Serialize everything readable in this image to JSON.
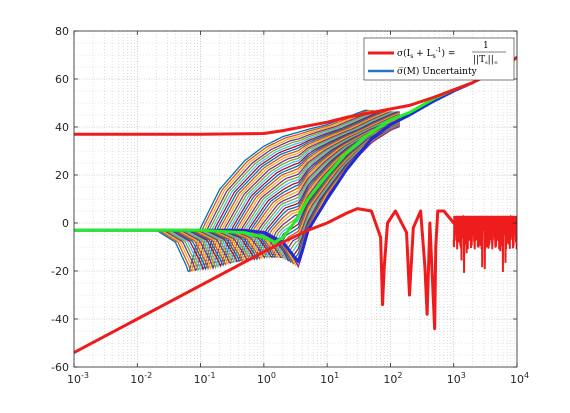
{
  "chart_data": {
    "type": "line",
    "x_scale": "log",
    "xlim": [
      0.001,
      10000
    ],
    "ylim": [
      -60,
      80
    ],
    "grid": true,
    "legend_placement": "top-right",
    "x_ticks": [
      0.001,
      0.01,
      0.1,
      1,
      10,
      100,
      1000,
      10000
    ],
    "x_tick_labels": [
      {
        "base": "10",
        "exp": "-3"
      },
      {
        "base": "10",
        "exp": "-2"
      },
      {
        "base": "10",
        "exp": "-1"
      },
      {
        "base": "10",
        "exp": "0"
      },
      {
        "base": "10",
        "exp": "1"
      },
      {
        "base": "10",
        "exp": "2"
      },
      {
        "base": "10",
        "exp": "3"
      },
      {
        "base": "10",
        "exp": "4"
      }
    ],
    "y_ticks": [
      -60,
      -40,
      -20,
      0,
      20,
      40,
      60,
      80
    ],
    "y_tick_labels": [
      "-60",
      "-40",
      "-20",
      "0",
      "20",
      "40",
      "60",
      "80"
    ],
    "legend": [
      {
        "lhs": "σ(I",
        "sub1": "s",
        "mid": " + L",
        "sub2": "s",
        "sup2": "-1",
        "eq": ") = ",
        "num": "1",
        "den": "||T",
        "den_sub": "s",
        "den_end": "||",
        "den_sub2": "∞",
        "color": "#ff2020"
      },
      {
        "label": "σ̅(M) Uncertainty",
        "color": "#2a75c2"
      }
    ],
    "series": [
      {
        "role": "red-upper",
        "color": "#ee1c1c",
        "x": [
          0.001,
          0.1,
          1,
          2,
          5,
          10,
          20,
          50,
          100,
          200,
          500,
          1000,
          2000,
          5000,
          10000
        ],
        "y": [
          37,
          37,
          37.3,
          38.5,
          40.5,
          42,
          44,
          46,
          47.5,
          49,
          52.5,
          55.5,
          58.5,
          64,
          69
        ]
      },
      {
        "role": "red-lower",
        "color": "#ee1c1c",
        "x": [
          0.001,
          0.01,
          0.1,
          1,
          2,
          5,
          10,
          20,
          30,
          50,
          70,
          75,
          80,
          90,
          120,
          180,
          200,
          230,
          300,
          350,
          380,
          420,
          500,
          520,
          560,
          700,
          1000,
          2000,
          5000,
          10000
        ],
        "y": [
          -54,
          -40,
          -26,
          -12,
          -8,
          -3,
          0,
          4,
          6,
          5,
          -6,
          -34,
          -18,
          0,
          5,
          -4,
          -30,
          -2,
          5,
          -18,
          -38,
          0,
          -44,
          -10,
          5,
          5,
          0,
          2,
          0,
          2
        ]
      },
      {
        "role": "green-nominal",
        "color": "#22ee22",
        "x": [
          0.001,
          0.1,
          0.5,
          1,
          1.5,
          2,
          3,
          5,
          10,
          20,
          40,
          100,
          200,
          500,
          1000,
          2000,
          5000,
          10000
        ],
        "y": [
          -3,
          -3,
          -4,
          -6,
          -8,
          -6,
          0,
          10,
          20,
          29,
          36,
          43,
          46,
          52,
          55.5,
          58.5,
          64,
          69
        ]
      },
      {
        "role": "blue-bound",
        "color": "#1f2bd6",
        "x": [
          0.001,
          0.5,
          1,
          2,
          3,
          3.5,
          4,
          5,
          10,
          20,
          50,
          100,
          200,
          500,
          1000,
          2000,
          5000,
          10000
        ],
        "y": [
          -3,
          -3,
          -4,
          -8,
          -14,
          -16,
          -12,
          -3,
          10,
          22,
          35,
          41,
          45,
          51,
          55,
          58.5,
          64,
          69
        ]
      },
      {
        "role": "uncertainty-family-outer",
        "color": "#1f77b4",
        "x": [
          0.001,
          0.02,
          0.04,
          0.06,
          0.065,
          0.08,
          0.1,
          0.2,
          0.5,
          1,
          2,
          5,
          10,
          20,
          40,
          100
        ],
        "y": [
          -3,
          -3,
          -8,
          -18,
          -21,
          -12,
          -2,
          14,
          26,
          32,
          36,
          39,
          41,
          44,
          47,
          46
        ]
      }
    ]
  }
}
